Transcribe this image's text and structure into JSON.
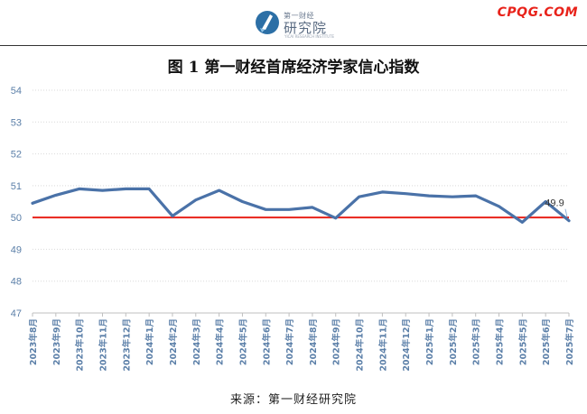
{
  "header": {
    "logo_top": "第一财经",
    "logo_main": "研究院",
    "logo_sub": "YICAI RESEARCH INSTITUTE",
    "site": "CPQG.COM"
  },
  "chart_title": "图 1  第一财经首席经济学家信心指数",
  "source": "来源：第一财经研究院",
  "colors": {
    "line": "#4a72a8",
    "reference": "#e8221a",
    "grid": "#d9d9d9",
    "axis_text": "#5b7fa8"
  },
  "chart_data": {
    "type": "line",
    "title": "图 1  第一财经首席经济学家信心指数",
    "xlabel": "",
    "ylabel": "",
    "ylim": [
      47,
      54
    ],
    "yticks": [
      47,
      48,
      49,
      50,
      51,
      52,
      53,
      54
    ],
    "grid": true,
    "legend": "none",
    "categories": [
      "2023年8月",
      "2023年9月",
      "2023年10月",
      "2023年11月",
      "2023年12月",
      "2024年1月",
      "2024年2月",
      "2024年3月",
      "2024年4月",
      "2024年5月",
      "2024年6月",
      "2024年7月",
      "2024年8月",
      "2024年9月",
      "2024年10月",
      "2024年11月",
      "2024年12月",
      "2025年1月",
      "2025年2月",
      "2025年3月",
      "2025年4月",
      "2025年5月",
      "2025年6月",
      "2025年7月"
    ],
    "series": [
      {
        "values": [
          50.45,
          50.7,
          50.9,
          50.85,
          50.9,
          50.9,
          50.05,
          50.55,
          50.85,
          50.5,
          50.25,
          50.25,
          50.32,
          49.98,
          50.65,
          50.8,
          50.75,
          50.68,
          50.65,
          50.68,
          50.35,
          49.85,
          50.5,
          49.9
        ]
      }
    ],
    "reference_line": 50,
    "annotation": {
      "index": 23,
      "text": "49.9"
    }
  }
}
